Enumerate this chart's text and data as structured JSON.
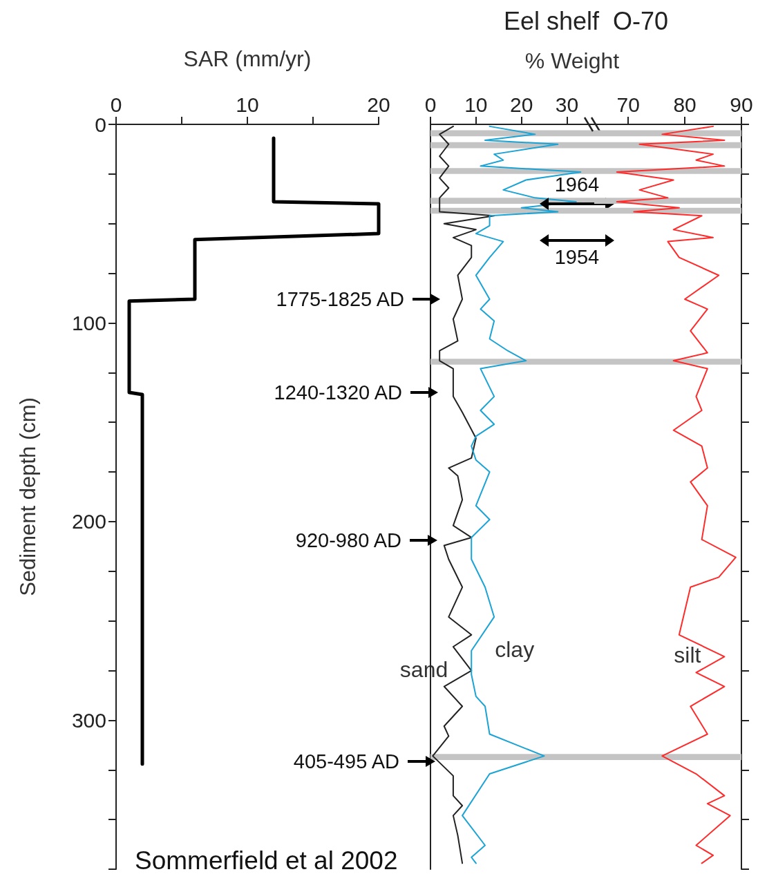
{
  "chart_data": [
    {
      "type": "line",
      "xlabel": "SAR (mm/yr)",
      "ylabel": "Sediment depth (cm)",
      "marker": "none",
      "xlim": [
        0,
        20
      ],
      "xticks": [
        0,
        {
          "value": 5,
          "label": null
        },
        10,
        {
          "value": 15,
          "label": null
        },
        20
      ],
      "ylim": [
        375,
        0
      ],
      "yticks": [
        0,
        {
          "value": 25,
          "label": null
        },
        {
          "value": 50,
          "label": null
        },
        {
          "value": 75,
          "label": null
        },
        100,
        {
          "value": 125,
          "label": null
        },
        {
          "value": 150,
          "label": null
        },
        {
          "value": 175,
          "label": null
        },
        200,
        {
          "value": 225,
          "label": null
        },
        {
          "value": 250,
          "label": null
        },
        {
          "value": 275,
          "label": null
        },
        300,
        {
          "value": 325,
          "label": null
        },
        {
          "value": 350,
          "label": null
        },
        {
          "value": 375,
          "label": null
        }
      ],
      "series": [
        {
          "color": "#000000",
          "x": [
            12,
            12,
            20,
            20,
            6,
            6,
            1,
            1,
            2,
            2
          ],
          "values": [
            7,
            39,
            40,
            55,
            58,
            88,
            89,
            135,
            136,
            322
          ]
        }
      ],
      "annotations": [
        "Sommerfield et al 2002"
      ]
    },
    {
      "type": "line",
      "title": "Eel shelf  O-70",
      "xlabel": "% Weight",
      "marker": "none",
      "tick_labels": "x",
      "xlim": [
        0,
        36
      ],
      "xticks": [
        0,
        10,
        20,
        30
      ],
      "ylim": [
        375,
        0
      ],
      "series": [
        {
          "name": "sand",
          "color": "#222222",
          "x": [
            5,
            2,
            4,
            2,
            4,
            2,
            4,
            2,
            2,
            14,
            3,
            10,
            5,
            9,
            9,
            6,
            7,
            5,
            6,
            2,
            2,
            5,
            5,
            7,
            10,
            9,
            4,
            6,
            7,
            5,
            9,
            3,
            4,
            7,
            4,
            9,
            5,
            9,
            3,
            7,
            3,
            4,
            0.5,
            5,
            5,
            7,
            5,
            6,
            7
          ],
          "values": [
            1,
            5,
            10,
            16,
            21,
            27,
            32,
            37,
            44,
            46,
            50,
            53,
            57,
            61,
            67,
            76,
            88,
            98,
            109,
            114,
            119,
            123,
            137,
            145,
            158,
            168,
            173,
            177,
            189,
            202,
            208,
            212,
            219,
            233,
            248,
            257,
            263,
            275,
            283,
            293,
            303,
            308,
            318,
            328,
            338,
            343,
            348,
            358,
            372
          ]
        },
        {
          "name": "clay",
          "color": "#1aa3d4",
          "x": [
            13,
            23,
            12,
            28,
            14,
            16,
            11,
            33,
            21,
            16,
            23,
            32,
            20,
            28,
            13,
            13,
            10,
            16,
            13,
            10,
            13,
            11,
            14,
            13,
            17,
            21,
            11,
            14,
            11,
            14,
            10,
            9,
            10,
            13,
            10,
            13,
            9,
            9,
            12,
            14,
            9,
            9,
            10,
            12,
            13,
            25,
            13,
            7,
            12,
            9,
            10
          ],
          "values": [
            1,
            5,
            8,
            10,
            15,
            18,
            21,
            24,
            28,
            33,
            37,
            39,
            42,
            44,
            46,
            51,
            55,
            59,
            67,
            76,
            88,
            93,
            99,
            108,
            114,
            119,
            123,
            137,
            144,
            151,
            157,
            162,
            169,
            175,
            192,
            199,
            208,
            219,
            233,
            248,
            265,
            277,
            288,
            293,
            307,
            318,
            327,
            348,
            363,
            369,
            372
          ]
        }
      ],
      "bands": [
        {
          "axis": "y",
          "from": 3,
          "to": 6,
          "color": "#c4c4c4"
        },
        {
          "axis": "y",
          "from": 9,
          "to": 12,
          "color": "#c4c4c4"
        },
        {
          "axis": "y",
          "from": 22,
          "to": 25,
          "color": "#c4c4c4"
        },
        {
          "axis": "y",
          "from": 37,
          "to": 40,
          "color": "#c4c4c4"
        },
        {
          "axis": "y",
          "from": 42,
          "to": 45,
          "color": "#c4c4c4"
        },
        {
          "axis": "y",
          "from": 118,
          "to": 121,
          "color": "#c4c4c4"
        },
        {
          "axis": "y",
          "from": 317,
          "to": 320,
          "color": "#c4c4c4"
        }
      ],
      "annotations": [
        "1964",
        "1954",
        "1775-1825 AD",
        "1240-1320 AD",
        "920-980 AD",
        "405-495 AD"
      ]
    },
    {
      "type": "line",
      "marker": "none",
      "tick_labels": "x",
      "xlim": [
        64,
        90
      ],
      "xticks": [
        70,
        80,
        90
      ],
      "ylim": [
        375,
        0
      ],
      "yticks": [
        {
          "value": 0,
          "label": null
        },
        {
          "value": 25,
          "label": null
        },
        {
          "value": 50,
          "label": null
        },
        {
          "value": 75,
          "label": null
        },
        {
          "value": 100,
          "label": null
        },
        {
          "value": 125,
          "label": null
        },
        {
          "value": 150,
          "label": null
        },
        {
          "value": 175,
          "label": null
        },
        {
          "value": 200,
          "label": null
        },
        {
          "value": 225,
          "label": null
        },
        {
          "value": 250,
          "label": null
        },
        {
          "value": 275,
          "label": null
        },
        {
          "value": 300,
          "label": null
        },
        {
          "value": 325,
          "label": null
        },
        {
          "value": 350,
          "label": null
        },
        {
          "value": 375,
          "label": null
        }
      ],
      "series": [
        {
          "name": "silt",
          "color": "#ff2a2a",
          "x": [
            85,
            76,
            87,
            72,
            85,
            82,
            87,
            68,
            78,
            72,
            77,
            68,
            79,
            71,
            83,
            78,
            85,
            77,
            79,
            86,
            80,
            84,
            81,
            84,
            78,
            84,
            82,
            83,
            78,
            83,
            84,
            81,
            84,
            83,
            89,
            86,
            81,
            79,
            87,
            82,
            87,
            81,
            84,
            76,
            82,
            87,
            84,
            88,
            82,
            85,
            83
          ],
          "values": [
            1,
            5,
            8,
            10,
            15,
            18,
            21,
            24,
            28,
            33,
            37,
            39,
            42,
            44,
            46,
            53,
            57,
            59,
            67,
            76,
            88,
            93,
            104,
            115,
            119,
            123,
            137,
            144,
            154,
            162,
            173,
            180,
            192,
            209,
            218,
            228,
            233,
            257,
            268,
            276,
            283,
            293,
            307,
            318,
            327,
            338,
            342,
            348,
            363,
            368,
            372
          ]
        }
      ],
      "bands": [
        {
          "axis": "y",
          "from": 3,
          "to": 6,
          "color": "#c4c4c4"
        },
        {
          "axis": "y",
          "from": 9,
          "to": 12,
          "color": "#c4c4c4"
        },
        {
          "axis": "y",
          "from": 22,
          "to": 25,
          "color": "#c4c4c4"
        },
        {
          "axis": "y",
          "from": 37,
          "to": 40,
          "color": "#c4c4c4"
        },
        {
          "axis": "y",
          "from": 42,
          "to": 45,
          "color": "#c4c4c4"
        },
        {
          "axis": "y",
          "from": 118,
          "to": 121,
          "color": "#c4c4c4"
        },
        {
          "axis": "y",
          "from": 317,
          "to": 320,
          "color": "#c4c4c4"
        }
      ]
    }
  ]
}
